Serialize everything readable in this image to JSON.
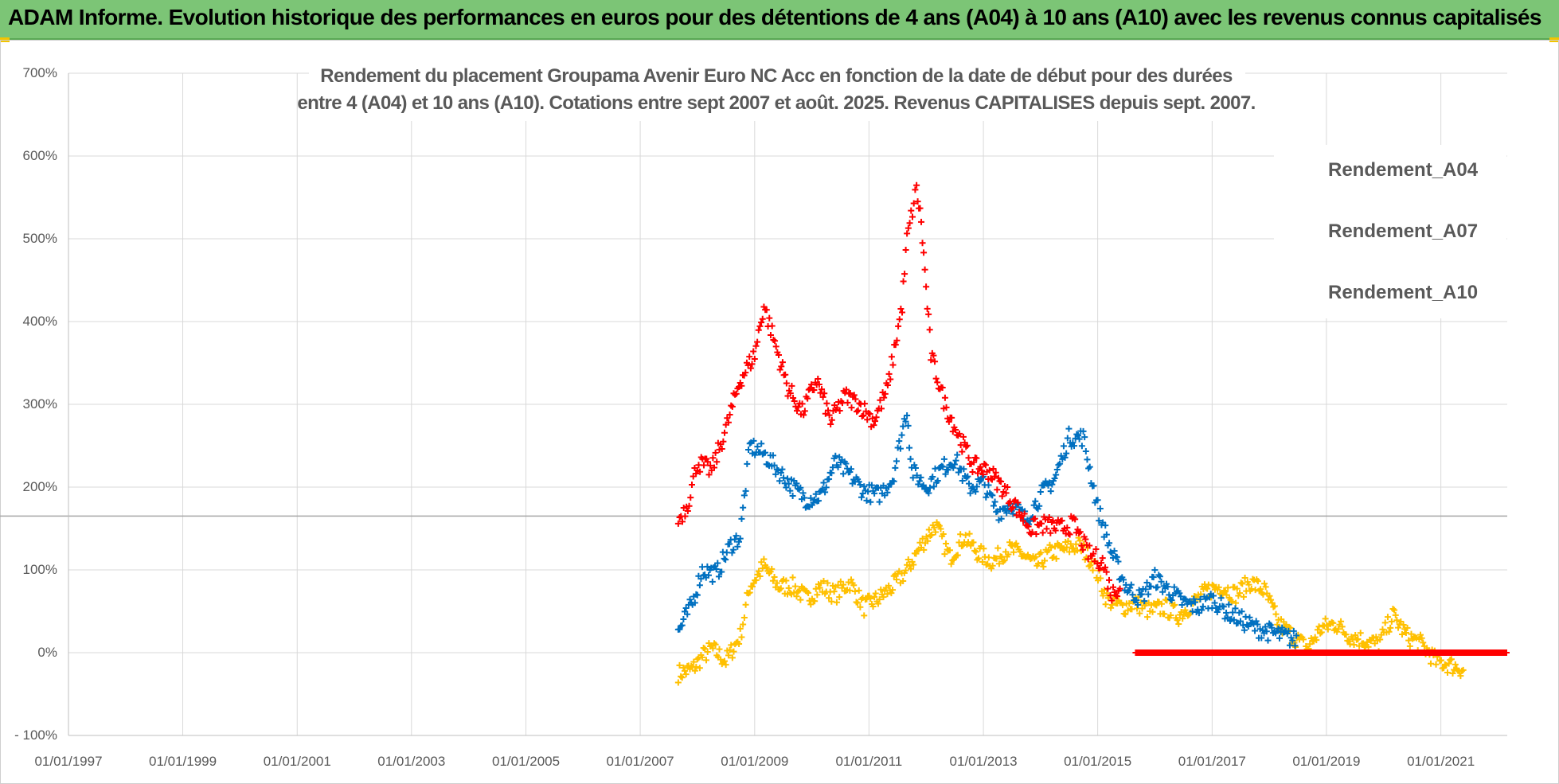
{
  "header": {
    "title": "ADAM Informe. Evolution historique des performances en euros pour des détentions de 4 ans (A04) à 10 ans (A10) avec les revenus connus capitalisés",
    "background": "#7cc576"
  },
  "chart_data": {
    "type": "scatter",
    "title_lines": [
      "Rendement du placement Groupama Avenir Euro NC Acc en fonction de la date de début pour des durées",
      "entre 4 (A04) et 10 ans (A10). Cotations entre sept 2007 et août. 2025. Revenus CAPITALISES depuis sept. 2007."
    ],
    "xlabel": "",
    "ylabel": "",
    "x_range": [
      "1997-01-01",
      "2022-03-01"
    ],
    "x_ticks": [
      "01/01/1997",
      "01/01/1999",
      "01/01/2001",
      "01/01/2003",
      "01/01/2005",
      "01/01/2007",
      "01/01/2009",
      "01/01/2011",
      "01/01/2013",
      "01/01/2015",
      "01/01/2017",
      "01/01/2019",
      "01/01/2021"
    ],
    "y_range": [
      -100,
      700
    ],
    "y_ticks": [
      "- 100%",
      "0%",
      "100%",
      "200%",
      "300%",
      "400%",
      "500%",
      "600%",
      "700%"
    ],
    "y_tick_values": [
      -100,
      0,
      100,
      200,
      300,
      400,
      500,
      600,
      700
    ],
    "reference_line_y": 165,
    "grid": true,
    "legend_position": "top-right",
    "series": [
      {
        "name": "Rendement_A04",
        "color": "#ffc000",
        "points": [
          [
            "2007-09-01",
            -25
          ],
          [
            "2007-12-01",
            -20
          ],
          [
            "2008-02-01",
            -5
          ],
          [
            "2008-04-01",
            5
          ],
          [
            "2008-07-01",
            -10
          ],
          [
            "2008-10-01",
            20
          ],
          [
            "2008-12-01",
            80
          ],
          [
            "2009-03-01",
            105
          ],
          [
            "2009-06-01",
            80
          ],
          [
            "2009-09-01",
            80
          ],
          [
            "2009-12-01",
            65
          ],
          [
            "2010-03-01",
            80
          ],
          [
            "2010-06-01",
            70
          ],
          [
            "2010-09-01",
            85
          ],
          [
            "2010-12-01",
            55
          ],
          [
            "2011-03-01",
            65
          ],
          [
            "2011-06-01",
            80
          ],
          [
            "2011-09-01",
            100
          ],
          [
            "2011-12-01",
            130
          ],
          [
            "2012-03-01",
            155
          ],
          [
            "2012-06-01",
            115
          ],
          [
            "2012-09-01",
            140
          ],
          [
            "2012-12-01",
            120
          ],
          [
            "2013-03-01",
            110
          ],
          [
            "2013-06-01",
            125
          ],
          [
            "2013-09-01",
            120
          ],
          [
            "2013-12-01",
            105
          ],
          [
            "2014-03-01",
            120
          ],
          [
            "2014-06-01",
            125
          ],
          [
            "2014-09-01",
            130
          ],
          [
            "2014-12-01",
            110
          ],
          [
            "2015-03-01",
            65
          ],
          [
            "2015-06-01",
            55
          ],
          [
            "2015-09-01",
            60
          ],
          [
            "2015-12-01",
            50
          ],
          [
            "2016-03-01",
            55
          ],
          [
            "2016-06-01",
            45
          ],
          [
            "2016-09-01",
            60
          ],
          [
            "2016-12-01",
            75
          ],
          [
            "2017-03-01",
            80
          ],
          [
            "2017-06-01",
            70
          ],
          [
            "2017-09-01",
            85
          ],
          [
            "2017-12-01",
            75
          ],
          [
            "2018-03-01",
            35
          ],
          [
            "2018-06-01",
            20
          ],
          [
            "2018-09-01",
            5
          ],
          [
            "2018-12-01",
            30
          ],
          [
            "2019-03-01",
            35
          ],
          [
            "2019-06-01",
            20
          ],
          [
            "2019-09-01",
            15
          ],
          [
            "2019-12-01",
            10
          ],
          [
            "2020-03-01",
            45
          ],
          [
            "2020-06-01",
            20
          ],
          [
            "2020-09-01",
            10
          ],
          [
            "2020-12-01",
            -10
          ],
          [
            "2021-03-01",
            -15
          ],
          [
            "2021-06-01",
            -20
          ]
        ]
      },
      {
        "name": "Rendement_A07",
        "color": "#0070c0",
        "points": [
          [
            "2007-09-01",
            25
          ],
          [
            "2007-12-01",
            60
          ],
          [
            "2008-02-01",
            100
          ],
          [
            "2008-05-01",
            95
          ],
          [
            "2008-08-01",
            130
          ],
          [
            "2008-10-01",
            140
          ],
          [
            "2008-12-01",
            250
          ],
          [
            "2009-03-01",
            240
          ],
          [
            "2009-06-01",
            220
          ],
          [
            "2009-09-01",
            200
          ],
          [
            "2009-12-01",
            185
          ],
          [
            "2010-03-01",
            190
          ],
          [
            "2010-06-01",
            230
          ],
          [
            "2010-09-01",
            215
          ],
          [
            "2010-12-01",
            195
          ],
          [
            "2011-03-01",
            190
          ],
          [
            "2011-06-01",
            210
          ],
          [
            "2011-09-01",
            295
          ],
          [
            "2011-10-01",
            220
          ],
          [
            "2012-01-01",
            200
          ],
          [
            "2012-04-01",
            220
          ],
          [
            "2012-07-01",
            235
          ],
          [
            "2012-10-01",
            200
          ],
          [
            "2013-01-01",
            205
          ],
          [
            "2013-04-01",
            170
          ],
          [
            "2013-07-01",
            180
          ],
          [
            "2013-10-01",
            160
          ],
          [
            "2014-01-01",
            190
          ],
          [
            "2014-04-01",
            210
          ],
          [
            "2014-07-01",
            260
          ],
          [
            "2014-10-01",
            260
          ],
          [
            "2015-01-01",
            175
          ],
          [
            "2015-04-01",
            120
          ],
          [
            "2015-07-01",
            80
          ],
          [
            "2015-10-01",
            65
          ],
          [
            "2016-01-01",
            90
          ],
          [
            "2016-04-01",
            75
          ],
          [
            "2016-07-01",
            60
          ],
          [
            "2016-10-01",
            55
          ],
          [
            "2017-01-01",
            65
          ],
          [
            "2017-04-01",
            50
          ],
          [
            "2017-07-01",
            40
          ],
          [
            "2017-10-01",
            30
          ],
          [
            "2018-01-01",
            25
          ],
          [
            "2018-04-01",
            20
          ],
          [
            "2018-07-01",
            15
          ]
        ]
      },
      {
        "name": "Rendement_A10",
        "color": "#ff0000",
        "points": [
          [
            "2007-09-01",
            160
          ],
          [
            "2007-11-01",
            180
          ],
          [
            "2008-01-01",
            230
          ],
          [
            "2008-04-01",
            220
          ],
          [
            "2008-07-01",
            270
          ],
          [
            "2008-10-01",
            330
          ],
          [
            "2009-01-01",
            360
          ],
          [
            "2009-03-01",
            420
          ],
          [
            "2009-05-01",
            380
          ],
          [
            "2009-08-01",
            320
          ],
          [
            "2009-11-01",
            290
          ],
          [
            "2010-02-01",
            330
          ],
          [
            "2010-05-01",
            280
          ],
          [
            "2010-08-01",
            310
          ],
          [
            "2010-11-01",
            300
          ],
          [
            "2011-02-01",
            280
          ],
          [
            "2011-05-01",
            320
          ],
          [
            "2011-08-01",
            420
          ],
          [
            "2011-09-01",
            500
          ],
          [
            "2011-11-01",
            560
          ],
          [
            "2011-12-01",
            520
          ],
          [
            "2012-02-01",
            360
          ],
          [
            "2012-05-01",
            300
          ],
          [
            "2012-08-01",
            260
          ],
          [
            "2012-11-01",
            225
          ],
          [
            "2013-02-01",
            220
          ],
          [
            "2013-05-01",
            200
          ],
          [
            "2013-08-01",
            175
          ],
          [
            "2013-11-01",
            150
          ],
          [
            "2014-02-01",
            155
          ],
          [
            "2014-05-01",
            150
          ],
          [
            "2014-08-01",
            155
          ],
          [
            "2014-11-01",
            120
          ],
          [
            "2015-02-01",
            110
          ],
          [
            "2015-04-01",
            70
          ],
          [
            "2015-06-01",
            85
          ]
        ],
        "flat_segment": {
          "x": [
            "2015-09-01",
            "2022-03-01"
          ],
          "y": 0
        }
      }
    ]
  }
}
